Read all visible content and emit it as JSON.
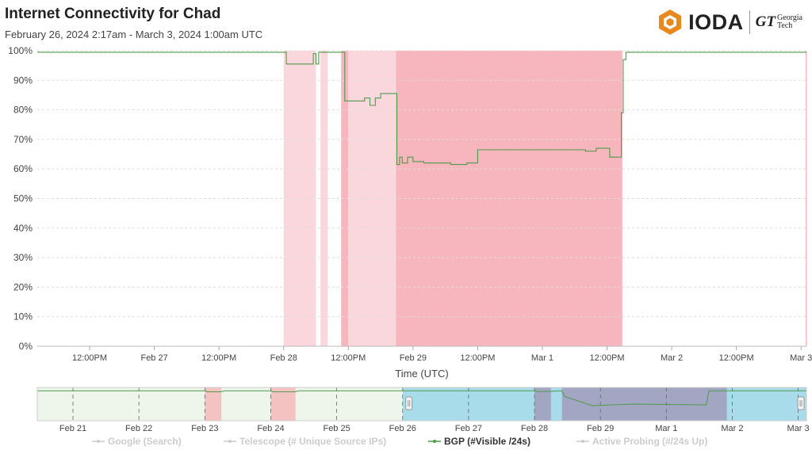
{
  "header": {
    "title": "Internet Connectivity for Chad",
    "subtitle": "February 26, 2024 2:17am - March 3, 2024 1:00am UTC",
    "logo_text": "IODA",
    "partner_mark": "GT",
    "partner_line1": "Georgia",
    "partner_line2": "Tech"
  },
  "colors": {
    "bgp_line": "#4f9a4b",
    "outage_light": "#fad7dc",
    "outage_dark": "#f7b5bd",
    "nav_blue": "#a8dcea",
    "nav_gray": "#a3a6c2",
    "nav_green_bg": "#eef6ec",
    "nav_red": "#f2c3c0"
  },
  "chart_data": {
    "type": "line",
    "title": "",
    "xlabel": "Time (UTC)",
    "ylabel": "",
    "ylim": [
      0,
      100
    ],
    "y_ticks": [
      "0%",
      "10%",
      "20%",
      "30%",
      "40%",
      "50%",
      "60%",
      "70%",
      "80%",
      "90%",
      "100%"
    ],
    "x_range": [
      "2024-02-26T02:17",
      "2024-03-03T01:00"
    ],
    "x_tick_labels": [
      {
        "t": "2024-02-26T12:00",
        "label": "12:00PM"
      },
      {
        "t": "2024-02-27T00:00",
        "label": "Feb 27"
      },
      {
        "t": "2024-02-27T12:00",
        "label": "12:00PM"
      },
      {
        "t": "2024-02-28T00:00",
        "label": "Feb 28"
      },
      {
        "t": "2024-02-28T12:00",
        "label": "12:00PM"
      },
      {
        "t": "2024-02-29T00:00",
        "label": "Feb 29"
      },
      {
        "t": "2024-02-29T12:00",
        "label": "12:00PM"
      },
      {
        "t": "2024-03-01T00:00",
        "label": "Mar 1"
      },
      {
        "t": "2024-03-01T12:00",
        "label": "12:00PM"
      },
      {
        "t": "2024-03-02T00:00",
        "label": "Mar 2"
      },
      {
        "t": "2024-03-02T12:00",
        "label": "12:00PM"
      },
      {
        "t": "2024-03-03T00:00",
        "label": "Mar 3"
      }
    ],
    "outage_bands": [
      {
        "start": "2024-02-28T00:00",
        "end": "2024-02-28T06:00",
        "level": "light"
      },
      {
        "start": "2024-02-28T06:50",
        "end": "2024-02-28T08:10",
        "level": "light"
      },
      {
        "start": "2024-02-28T10:40",
        "end": "2024-02-28T12:00",
        "level": "dark"
      },
      {
        "start": "2024-02-28T12:00",
        "end": "2024-02-28T20:50",
        "level": "light"
      },
      {
        "start": "2024-02-28T20:50",
        "end": "2024-03-01T14:50",
        "level": "dark"
      }
    ],
    "series": [
      {
        "name": "BGP (#Visible /24s)",
        "x": [
          "2024-02-26T02:17",
          "2024-02-28T00:00",
          "2024-02-28T00:30",
          "2024-02-28T05:00",
          "2024-02-28T05:30",
          "2024-02-28T06:00",
          "2024-02-28T06:30",
          "2024-02-28T07:00",
          "2024-02-28T08:00",
          "2024-02-28T09:30",
          "2024-02-28T10:50",
          "2024-02-28T11:20",
          "2024-02-28T14:00",
          "2024-02-28T15:00",
          "2024-02-28T16:00",
          "2024-02-28T17:00",
          "2024-02-28T18:00",
          "2024-02-28T20:50",
          "2024-02-28T21:00",
          "2024-02-28T21:30",
          "2024-02-28T22:00",
          "2024-02-28T23:00",
          "2024-02-29T00:00",
          "2024-02-29T02:00",
          "2024-02-29T06:00",
          "2024-02-29T07:00",
          "2024-02-29T10:00",
          "2024-02-29T12:00",
          "2024-02-29T18:00",
          "2024-03-01T00:00",
          "2024-03-01T06:00",
          "2024-03-01T08:00",
          "2024-03-01T10:00",
          "2024-03-01T12:00",
          "2024-03-01T12:30",
          "2024-03-01T14:20",
          "2024-03-01T14:40",
          "2024-03-01T15:00",
          "2024-03-01T15:30",
          "2024-03-03T01:00"
        ],
        "values": [
          99.5,
          99.5,
          95.5,
          95.5,
          99,
          95.5,
          99.5,
          99.5,
          99.5,
          99.5,
          99.5,
          83,
          83,
          84,
          81.5,
          84,
          85.5,
          85.5,
          61.5,
          64,
          62,
          64,
          62.5,
          62,
          62,
          61.5,
          62,
          66.5,
          66.5,
          66.5,
          66.5,
          66,
          67,
          67,
          64,
          64,
          79,
          97,
          99.5,
          99.5
        ]
      }
    ],
    "legend": [
      {
        "label": "Google (Search)",
        "active": false
      },
      {
        "label": "Telescope (# Unique Source IPs)",
        "active": false
      },
      {
        "label": "BGP (#Visible /24s)",
        "active": true
      },
      {
        "label": "Active Probing (#/24s Up)",
        "active": false
      }
    ],
    "legend_position": "bottom",
    "navigator": {
      "x_tick_labels": [
        "Feb 21",
        "Feb 22",
        "Feb 23",
        "Feb 24",
        "Feb 25",
        "Feb 26",
        "Feb 27",
        "Feb 28",
        "Feb 29",
        "Mar 1",
        "Mar 2",
        "Mar 3"
      ]
    }
  }
}
